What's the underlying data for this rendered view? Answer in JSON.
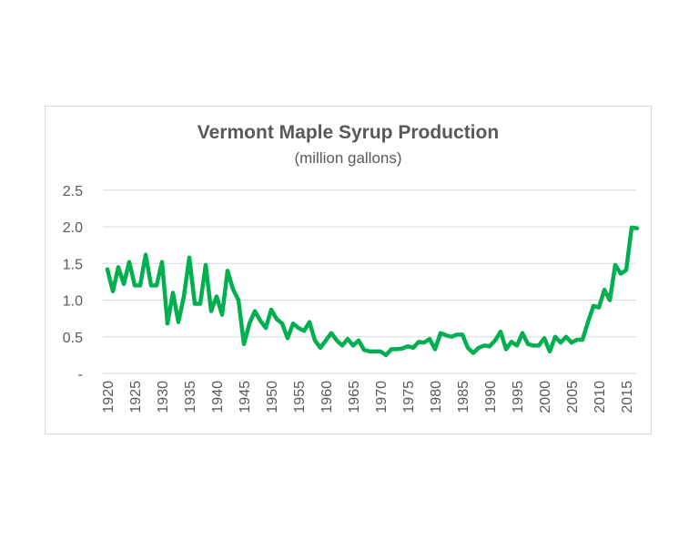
{
  "chart_data": {
    "type": "line",
    "title": "Vermont Maple Syrup Production",
    "subtitle": "(million gallons)",
    "xlabel": "",
    "ylabel": "",
    "ylim": [
      0,
      2.5
    ],
    "y_ticks": [
      0,
      0.5,
      1.0,
      1.5,
      2.0,
      2.5
    ],
    "y_tick_labels": [
      "-",
      "0.5",
      "1.0",
      "1.5",
      "2.0",
      "2.5"
    ],
    "x_tick_labels": [
      "1920",
      "1925",
      "1930",
      "1935",
      "1940",
      "1945",
      "1950",
      "1955",
      "1960",
      "1965",
      "1970",
      "1975",
      "1980",
      "1985",
      "1990",
      "1995",
      "2000",
      "2005",
      "2010",
      "2015"
    ],
    "grid": true,
    "color": "#00b050",
    "x_start": 1920,
    "values": [
      1.42,
      1.12,
      1.45,
      1.22,
      1.52,
      1.2,
      1.2,
      1.62,
      1.2,
      1.2,
      1.52,
      0.68,
      1.1,
      0.7,
      1.05,
      1.58,
      0.95,
      0.95,
      1.48,
      0.85,
      1.05,
      0.8,
      1.4,
      1.15,
      1.0,
      0.4,
      0.68,
      0.85,
      0.72,
      0.62,
      0.87,
      0.74,
      0.68,
      0.48,
      0.68,
      0.62,
      0.58,
      0.7,
      0.45,
      0.35,
      0.45,
      0.55,
      0.45,
      0.38,
      0.47,
      0.38,
      0.45,
      0.32,
      0.3,
      0.3,
      0.3,
      0.25,
      0.33,
      0.33,
      0.34,
      0.37,
      0.35,
      0.43,
      0.42,
      0.47,
      0.33,
      0.55,
      0.52,
      0.5,
      0.53,
      0.53,
      0.35,
      0.28,
      0.35,
      0.38,
      0.37,
      0.45,
      0.57,
      0.33,
      0.43,
      0.38,
      0.55,
      0.4,
      0.38,
      0.38,
      0.48,
      0.3,
      0.5,
      0.42,
      0.5,
      0.42,
      0.46,
      0.46,
      0.7,
      0.92,
      0.9,
      1.14,
      1.0,
      1.48,
      1.36,
      1.41,
      1.99,
      1.98
    ]
  }
}
